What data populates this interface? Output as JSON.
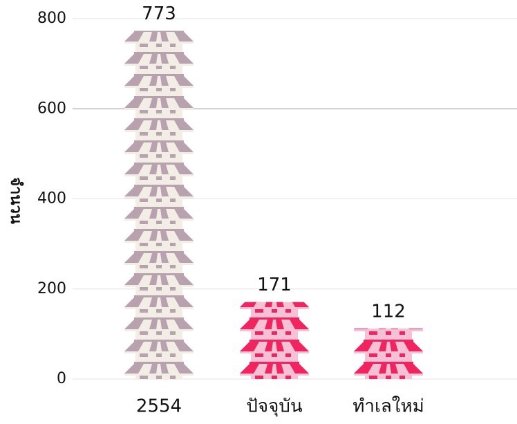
{
  "chart_data": {
    "type": "pictograph-bar",
    "y_label": "จำนวน",
    "categories": [
      "2554",
      "ปัจจุบัน",
      "ทำเลใหม่"
    ],
    "values": [
      773,
      171,
      112
    ],
    "colors": [
      "#b7a2ad",
      "#f0245f",
      "#f0245f"
    ],
    "stripe_colors": [
      "#f2eee6",
      "#f7c0d4",
      "#f7c0d4"
    ],
    "ylim": [
      0,
      800
    ],
    "yticks": [
      0,
      200,
      400,
      600,
      800
    ],
    "grid": true
  }
}
